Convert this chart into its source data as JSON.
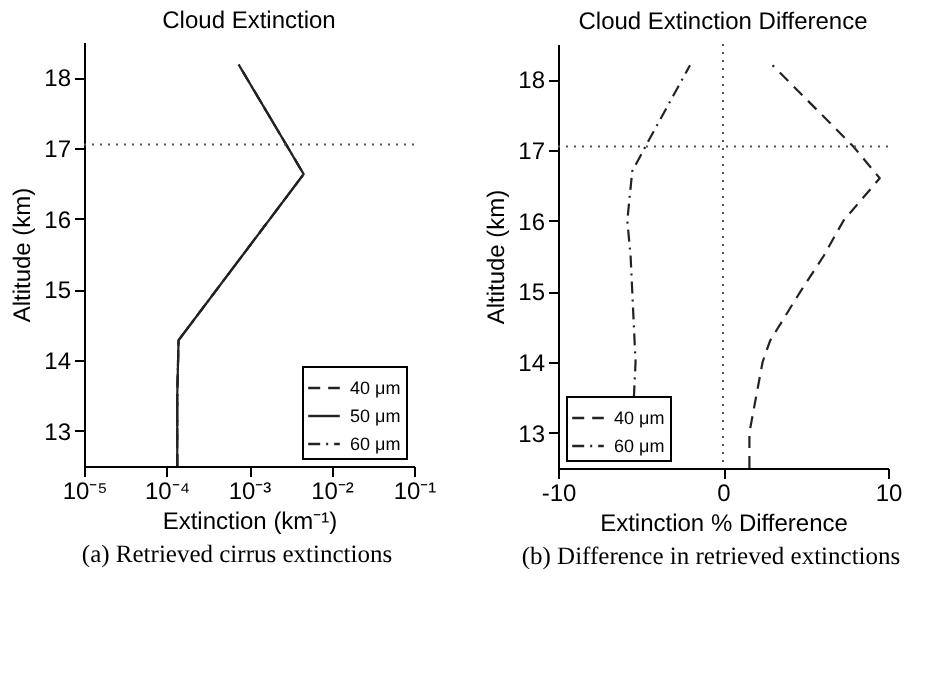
{
  "chart_data": [
    {
      "type": "line",
      "title": "Cloud Extinction",
      "xlabel": "Extinction (km⁻¹)",
      "ylabel": "Altitude (km)",
      "log": "x",
      "xlim": [
        1e-05,
        0.1
      ],
      "xticks": [
        {
          "value": 1e-05,
          "label": "10⁻⁵"
        },
        {
          "value": 0.0001,
          "label": "10⁻⁴"
        },
        {
          "value": 0.001,
          "label": "10⁻³"
        },
        {
          "value": 0.01,
          "label": "10⁻²"
        },
        {
          "value": 0.1,
          "label": "10⁻¹"
        }
      ],
      "ylim": [
        12.5,
        18.5
      ],
      "yticks": [
        13,
        14,
        15,
        16,
        17,
        18
      ],
      "legend": "bottom right",
      "ref_lines": [
        {
          "axis": "y",
          "value": 17.05,
          "line_style": "dotted"
        }
      ],
      "series": [
        {
          "name": "40 μm",
          "color": "#222222",
          "line_style": "dashed",
          "x": [
            0.000135,
            0.000135,
            0.00014,
            0.0046,
            0.00075
          ],
          "values": [
            12.5,
            13.5,
            14.28,
            16.63,
            18.18
          ]
        },
        {
          "name": "50 μm",
          "color": "#222222",
          "line_style": "solid",
          "x": [
            0.000135,
            0.000135,
            0.00014,
            0.0046,
            0.00075
          ],
          "values": [
            12.5,
            13.5,
            14.28,
            16.63,
            18.18
          ]
        },
        {
          "name": "60 μm",
          "color": "#222222",
          "line_style": "dashdot",
          "x": [
            0.000135,
            0.000135,
            0.00014,
            0.0046,
            0.00075
          ],
          "values": [
            12.5,
            13.5,
            14.28,
            16.63,
            18.18
          ]
        }
      ],
      "annotations": [
        "(a) Retrieved cirrus extinctions"
      ]
    },
    {
      "type": "line",
      "title": "Cloud Extinction Difference",
      "xlabel": "Extinction % Difference",
      "ylabel": "Altitude (km)",
      "xlim": [
        -10,
        10
      ],
      "xticks": [
        -10,
        0,
        10
      ],
      "ylim": [
        12.5,
        18.5
      ],
      "yticks": [
        13,
        14,
        15,
        16,
        17,
        18
      ],
      "legend": "bottom left",
      "ref_lines": [
        {
          "axis": "y",
          "value": 17.05,
          "line_style": "dotted"
        },
        {
          "axis": "x",
          "value": 0,
          "line_style": "dotted"
        }
      ],
      "series": [
        {
          "name": "40 μm",
          "color": "#222222",
          "line_style": "dashed",
          "x": [
            1.6,
            1.6,
            2.4,
            2.85,
            4.7,
            6.1,
            7.3,
            9.5,
            7.9,
            3.0
          ],
          "values": [
            12.5,
            13.0,
            14.0,
            14.3,
            15.0,
            15.5,
            16.0,
            16.6,
            17.05,
            18.2
          ]
        },
        {
          "name": "60 μm",
          "color": "#222222",
          "line_style": "dashdot",
          "x": [
            -5.4,
            -5.3,
            -5.5,
            -5.6,
            -5.8,
            -5.5,
            -4.7,
            -2.0
          ],
          "values": [
            13.5,
            14.0,
            15.0,
            15.5,
            16.0,
            16.7,
            17.05,
            18.2
          ]
        }
      ],
      "annotations": [
        "(b) Difference in retrieved extinctions"
      ]
    }
  ]
}
